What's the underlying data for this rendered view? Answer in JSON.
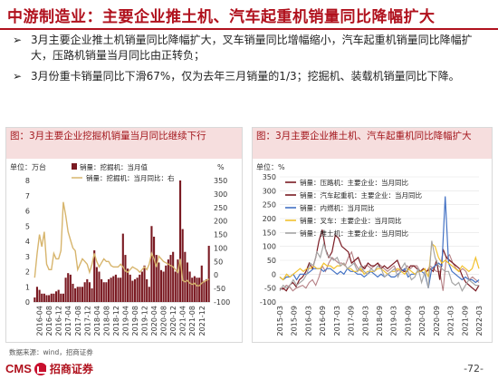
{
  "header": {
    "title": "中游制造业：主要企业推土机、汽车起重机销量同比降幅扩大"
  },
  "bullets": [
    {
      "mark": "➢",
      "text": "3月主要企业推土机销量同比降幅扩大，叉车销量同比增幅缩小，汽车起重机销量同比降幅扩大，压路机销量当月同比由正转负；"
    },
    {
      "mark": "➢",
      "text": "3月份重卡销量同比下滑67%，仅为去年三月销量的1/3；挖掘机、装载机销量同比下降。"
    }
  ],
  "source": "数据来源：wind，招商证券",
  "footer": {
    "brand": "CMS",
    "company": "招商证券",
    "page": "-72-"
  },
  "colors": {
    "bar": "#7a1a22",
    "line_left": "#d7b56d",
    "crane": "#7a1a22",
    "diesel": "#4472c4",
    "forklift": "#f2c12e",
    "bulldozer": "#a6a6a6",
    "title_red": "#b0111d"
  },
  "chart_data": [
    {
      "type": "bar",
      "title": "图：3月主要企业挖掘机销量当月同比继续下行",
      "unit_left": "单位：万台",
      "unit_right": "%",
      "legend_position": "top",
      "series": [
        {
          "name": "销量：挖掘机：当月值",
          "axis": "left",
          "type": "bar"
        },
        {
          "name": "销量：挖掘机：当月同比：右",
          "axis": "right",
          "type": "line"
        }
      ],
      "x_tick_labels": [
        "2016-04",
        "2016-08",
        "2016-12",
        "2017-04",
        "2017-08",
        "2017-12",
        "2018-04",
        "2018-08",
        "2018-12",
        "2019-04",
        "2019-08",
        "2019-12",
        "2020-04",
        "2020-08",
        "2020-12",
        "2021-04",
        "2021-08",
        "2021-12"
      ],
      "y_left_ticks": [
        "0",
        "1",
        "2",
        "3",
        "4",
        "5",
        "6",
        "7",
        "8"
      ],
      "y_right_ticks": [
        "-100",
        "-50",
        "0",
        "50",
        "100",
        "150",
        "200",
        "250",
        "300",
        "350"
      ],
      "ylim_left": [
        0,
        8
      ],
      "ylim_right": [
        -100,
        350
      ],
      "months": [
        "2016-02",
        "2016-03",
        "2016-04",
        "2016-05",
        "2016-06",
        "2016-07",
        "2016-08",
        "2016-09",
        "2016-10",
        "2016-11",
        "2016-12",
        "2017-01",
        "2017-02",
        "2017-03",
        "2017-04",
        "2017-05",
        "2017-06",
        "2017-07",
        "2017-08",
        "2017-09",
        "2017-10",
        "2017-11",
        "2017-12",
        "2018-01",
        "2018-02",
        "2018-03",
        "2018-04",
        "2018-05",
        "2018-06",
        "2018-07",
        "2018-08",
        "2018-09",
        "2018-10",
        "2018-11",
        "2018-12",
        "2019-01",
        "2019-02",
        "2019-03",
        "2019-04",
        "2019-05",
        "2019-06",
        "2019-07",
        "2019-08",
        "2019-09",
        "2019-10",
        "2019-11",
        "2019-12",
        "2020-01",
        "2020-02",
        "2020-03",
        "2020-04",
        "2020-05",
        "2020-06",
        "2020-07",
        "2020-08",
        "2020-09",
        "2020-10",
        "2020-11",
        "2020-12",
        "2021-01",
        "2021-02",
        "2021-03",
        "2021-04",
        "2021-05",
        "2021-06",
        "2021-07",
        "2021-08",
        "2021-09",
        "2021-10",
        "2021-11",
        "2021-12",
        "2022-01",
        "2022-02",
        "2022-03"
      ],
      "values_left": [
        0.3,
        1.0,
        0.8,
        0.55,
        0.55,
        0.45,
        0.45,
        0.55,
        0.55,
        0.7,
        0.8,
        0.55,
        0.55,
        1.6,
        1.9,
        1.8,
        1.2,
        0.9,
        1.0,
        1.0,
        1.0,
        1.3,
        1.5,
        1.3,
        0.9,
        3.4,
        2.3,
        2.0,
        1.5,
        1.3,
        1.3,
        1.5,
        1.6,
        1.7,
        1.8,
        1.6,
        1.6,
        4.5,
        3.1,
        2.2,
        1.8,
        1.4,
        1.5,
        1.6,
        1.8,
        2.0,
        2.4,
        1.5,
        1.0,
        5.0,
        4.3,
        3.1,
        2.6,
        2.1,
        2.0,
        2.4,
        2.8,
        3.1,
        3.3,
        2.0,
        2.8,
        8.0,
        4.8,
        3.3,
        2.6,
        2.0,
        1.6,
        1.7,
        1.6,
        1.6,
        2.4,
        1.4,
        1.5,
        3.7
      ],
      "values_right": [
        -10,
        80,
        150,
        105,
        160,
        40,
        20,
        20,
        80,
        60,
        60,
        90,
        270,
        220,
        160,
        130,
        100,
        90,
        20,
        40,
        60,
        50,
        40,
        10,
        40,
        80,
        50,
        30,
        45,
        60,
        50,
        50,
        35,
        30,
        30,
        30,
        40,
        30,
        15,
        10,
        20,
        30,
        25,
        20,
        10,
        20,
        30,
        20,
        40,
        80,
        60,
        30,
        70,
        60,
        50,
        45,
        40,
        35,
        30,
        20,
        10,
        60,
        -20,
        -25,
        -20,
        -30,
        -35,
        -30,
        -40,
        -40,
        -30,
        -25,
        -20,
        -15
      ]
    },
    {
      "type": "line",
      "title": "图：3月主要企业推土机、汽车起重机同比降幅扩大",
      "unit_left": "单位：%",
      "legend_position": "top-left",
      "x_tick_labels": [
        "2015-03",
        "2015-09",
        "2016-03",
        "2016-09",
        "2017-03",
        "2017-09",
        "2018-03",
        "2018-09",
        "2019-03",
        "2019-09",
        "2020-03",
        "2020-09",
        "2021-03",
        "2021-09",
        "2022-03"
      ],
      "y_ticks": [
        "-100",
        "-50",
        "0",
        "50",
        "100",
        "150",
        "200",
        "250",
        "300",
        "350"
      ],
      "ylim": [
        -100,
        350
      ],
      "series": [
        {
          "name": "销量：压路机：主要企业：当月同比",
          "values": [
            -50,
            -55,
            -40,
            -45,
            -60,
            -50,
            -45,
            -40,
            -50,
            -30,
            -20,
            -40,
            -10,
            30,
            10,
            40,
            60,
            50,
            40,
            40,
            30,
            60,
            80,
            40,
            20,
            10,
            30,
            30,
            20,
            30,
            40,
            30,
            20,
            10,
            20,
            30,
            10,
            20,
            10,
            30,
            20,
            30,
            30,
            10,
            20,
            10,
            30,
            20,
            10,
            10,
            -60,
            60,
            70,
            40,
            20,
            10,
            20,
            10,
            -20,
            -10,
            -20,
            -30
          ]
        },
        {
          "name": "销量：汽车起重机：主要企业：当月同比",
          "values": [
            -55,
            -50,
            -60,
            -40,
            -30,
            -45,
            -20,
            -10,
            10,
            40,
            20,
            60,
            120,
            160,
            90,
            60,
            80,
            140,
            130,
            100,
            90,
            80,
            40,
            50,
            60,
            30,
            20,
            40,
            30,
            30,
            40,
            20,
            30,
            20,
            30,
            40,
            50,
            20,
            10,
            10,
            30,
            30,
            20,
            10,
            20,
            10,
            20,
            10,
            50,
            -20,
            90,
            60,
            50,
            40,
            30,
            20,
            -10,
            -30,
            -40,
            -50,
            -60,
            -40
          ]
        },
        {
          "name": "销量：内燃机：当月同比",
          "values": [
            -10,
            -20,
            -10,
            -10,
            0,
            -20,
            0,
            0,
            0,
            10,
            20,
            20,
            20,
            10,
            20,
            20,
            10,
            0,
            10,
            0,
            20,
            10,
            10,
            0,
            0,
            -10,
            0,
            10,
            0,
            -10,
            0,
            -10,
            0,
            -10,
            -10,
            0,
            10,
            20,
            -10,
            0,
            0,
            10,
            10,
            0,
            -50,
            20,
            30,
            40,
            30,
            280,
            40,
            10,
            0,
            -10,
            -20,
            -10,
            -20,
            -20,
            -30,
            -20
          ]
        },
        {
          "name": "销量：叉车：主要企业：当月同比",
          "values": [
            -10,
            -20,
            0,
            -10,
            0,
            10,
            20,
            10,
            20,
            20,
            30,
            20,
            20,
            40,
            30,
            30,
            20,
            30,
            30,
            40,
            20,
            20,
            10,
            10,
            20,
            0,
            10,
            10,
            10,
            20,
            20,
            10,
            0,
            10,
            10,
            20,
            10,
            0,
            20,
            10,
            0,
            10,
            10,
            20,
            -10,
            110,
            100,
            60,
            40,
            50,
            40,
            30,
            20,
            10,
            30,
            20,
            10,
            20,
            60,
            20
          ]
        },
        {
          "name": "销量：推土机：主要企业：当月同比",
          "values": [
            -60,
            -40,
            -50,
            -40,
            -20,
            -40,
            -30,
            -20,
            0,
            40,
            30,
            80,
            60,
            110,
            70,
            60,
            50,
            60,
            30,
            40,
            20,
            30,
            40,
            10,
            30,
            10,
            0,
            20,
            10,
            30,
            20,
            -10,
            0,
            10,
            20,
            -10,
            20,
            40,
            10,
            -20,
            -10,
            20,
            -30,
            10,
            -50,
            120,
            60,
            30,
            20,
            10,
            10,
            -30,
            -40,
            -30,
            -60,
            -40,
            -20,
            -30,
            -40,
            -40
          ]
        }
      ]
    }
  ]
}
